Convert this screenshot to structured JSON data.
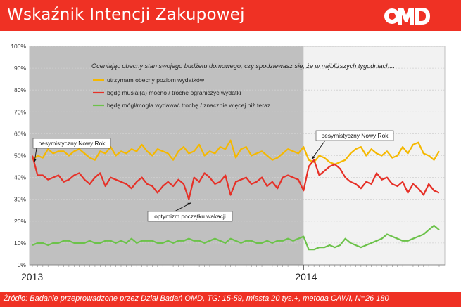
{
  "header": {
    "title": "Wskaźnik Intencji Zakupowej",
    "logo_text": "OMD",
    "bg_color": "#ef3124"
  },
  "footer": {
    "source": "Źródło: Badanie przeprowadzone przez Dział Badań OMD, TG: 15-59, miasta 20 tys.+, metoda CAWI, N=26 180"
  },
  "chart_data": {
    "type": "line",
    "question": "Oceniając obecny stan swojego budżetu domowego, czy spodziewasz się, że w najbliższych tygodniach...",
    "y_ticks": [
      "0%",
      "10%",
      "20%",
      "30%",
      "40%",
      "50%",
      "60%",
      "70%",
      "80%",
      "90%",
      "100%"
    ],
    "ylim": [
      0,
      100
    ],
    "x_labels": [
      {
        "index": 0,
        "label": "2013"
      },
      {
        "index": 52,
        "label": "2014"
      }
    ],
    "shaded_period": {
      "from": 0,
      "to": 52,
      "color": "#c0c0c0"
    },
    "series": [
      {
        "name": "utrzymam obecny poziom wydatków",
        "color": "#f5b800",
        "values": [
          48,
          50,
          49,
          53,
          51,
          52,
          52,
          50,
          52,
          53,
          51,
          49,
          48,
          52,
          51,
          54,
          50,
          52,
          51,
          53,
          52,
          55,
          52,
          50,
          53,
          52,
          51,
          48,
          52,
          54,
          51,
          52,
          55,
          50,
          52,
          51,
          54,
          53,
          57,
          49,
          53,
          54,
          50,
          51,
          52,
          50,
          48,
          49,
          51,
          53,
          52,
          51,
          54,
          48,
          47,
          50,
          49,
          47,
          46,
          47,
          48,
          51,
          53,
          54,
          50,
          53,
          51,
          50,
          52,
          49,
          50,
          54,
          51,
          55,
          56,
          51,
          50,
          48,
          52
        ]
      },
      {
        "name": "będę musiał(a) mocno / trochę ograniczyć wydatki",
        "color": "#e63027",
        "values": [
          50,
          41,
          41,
          39,
          40,
          41,
          38,
          39,
          41,
          42,
          39,
          37,
          40,
          42,
          36,
          40,
          39,
          38,
          37,
          35,
          38,
          40,
          37,
          36,
          33,
          36,
          38,
          36,
          39,
          37,
          30,
          40,
          38,
          42,
          40,
          37,
          38,
          41,
          32,
          38,
          39,
          40,
          37,
          38,
          40,
          36,
          38,
          35,
          40,
          41,
          40,
          39,
          34,
          45,
          48,
          41,
          43,
          45,
          46,
          44,
          40,
          38,
          37,
          35,
          38,
          37,
          42,
          39,
          40,
          37,
          36,
          38,
          33,
          37,
          35,
          32,
          37,
          34,
          33
        ]
      },
      {
        "name": "będę mógł/mogła wydawać trochę / znacznie więcej niż teraz",
        "color": "#6cc24a",
        "values": [
          9,
          10,
          10,
          9,
          10,
          10,
          11,
          11,
          10,
          10,
          10,
          11,
          10,
          10,
          11,
          11,
          10,
          11,
          10,
          12,
          10,
          11,
          11,
          11,
          10,
          10,
          11,
          10,
          11,
          11,
          12,
          11,
          11,
          10,
          11,
          12,
          11,
          10,
          12,
          11,
          10,
          11,
          11,
          10,
          10,
          11,
          10,
          11,
          11,
          12,
          11,
          12,
          13,
          7,
          7,
          8,
          8,
          9,
          8,
          9,
          12,
          10,
          9,
          8,
          9,
          10,
          11,
          12,
          14,
          13,
          12,
          11,
          11,
          12,
          13,
          14,
          16,
          18,
          16
        ]
      }
    ],
    "annotations": [
      {
        "text": "pesymistyczny  Nowy Rok",
        "index": 0,
        "value": 48
      },
      {
        "text": "pesymistyczny  Nowy Rok",
        "index": 53,
        "value": 47
      },
      {
        "text": "optymizm  początku wakacji",
        "index": 30,
        "value": 30
      }
    ]
  }
}
